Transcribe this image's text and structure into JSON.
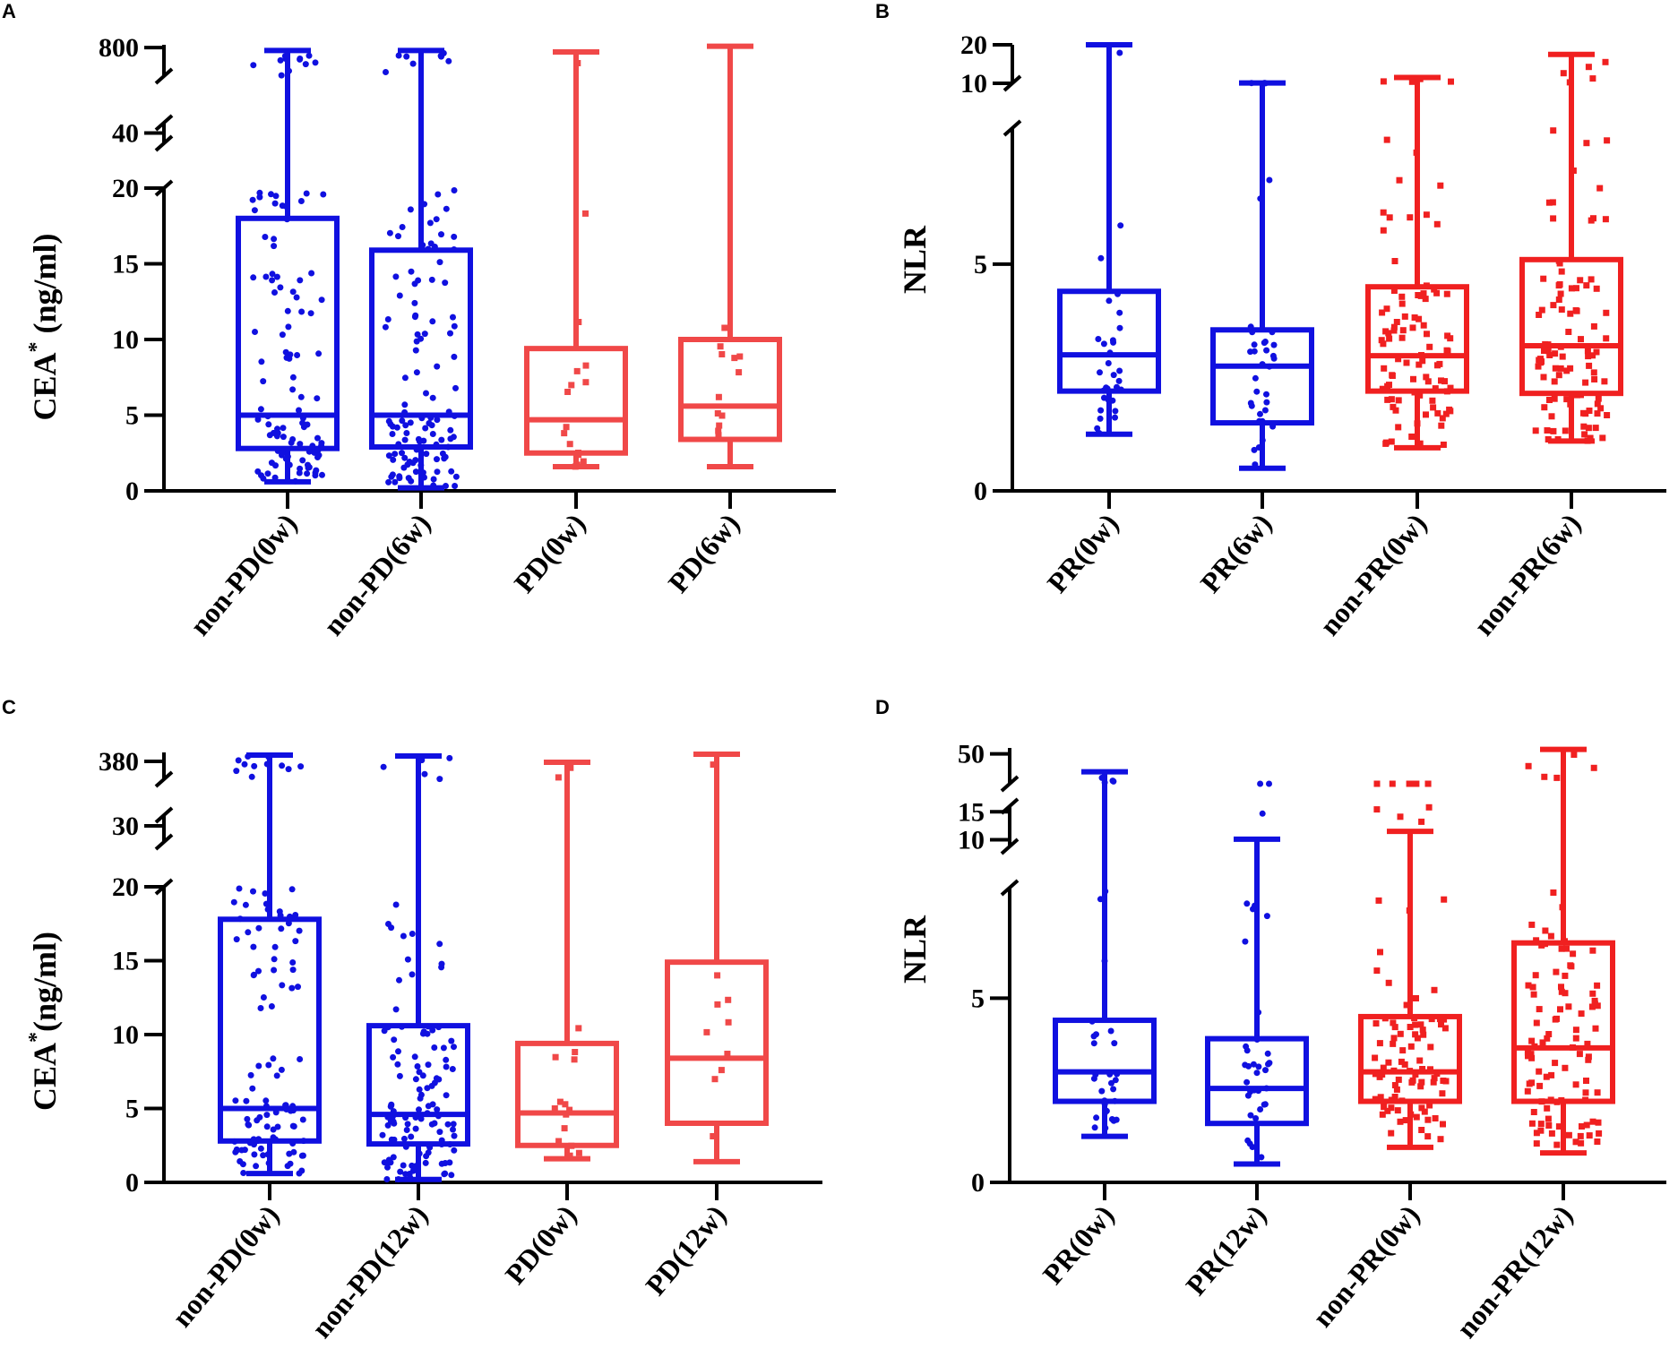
{
  "colors": {
    "blue": "#1010E0",
    "red": "#F04848",
    "red_dark": "#F02020"
  },
  "chart_data": [
    {
      "panel": "A",
      "type": "box",
      "ylabel_main": "CEA",
      "ylabel_sup": "*",
      "ylabel_units": " (ng/ml)",
      "y_axis_segments": [
        [
          0,
          20
        ],
        [
          30,
          50
        ],
        [
          700,
          810
        ]
      ],
      "yticks": [
        {
          "v": 0,
          "label": "0"
        },
        {
          "v": 5,
          "label": "5"
        },
        {
          "v": 10,
          "label": "10"
        },
        {
          "v": 15,
          "label": "15"
        },
        {
          "v": 20,
          "label": "20"
        },
        {
          "v": 40,
          "label": "40"
        },
        {
          "v": 800,
          "label": "800"
        }
      ],
      "categories": [
        "non-PD(0w)",
        "non-PD(6w)",
        "PD(0w)",
        "PD(6w)"
      ],
      "boxes": [
        {
          "color": "blue",
          "marker": "circle",
          "n": 110,
          "min": 0.6,
          "q1": 2.8,
          "median": 5.0,
          "q3": 18.0,
          "max": 790,
          "dense": true
        },
        {
          "color": "blue",
          "marker": "circle",
          "n": 120,
          "min": 0.2,
          "q1": 2.9,
          "median": 5.0,
          "q3": 15.9,
          "max": 790,
          "dense": true
        },
        {
          "color": "red",
          "marker": "square",
          "n": 16,
          "min": 1.6,
          "q1": 2.5,
          "median": 4.7,
          "q3": 9.4,
          "max": 785,
          "dense": false
        },
        {
          "color": "red",
          "marker": "square",
          "n": 12,
          "min": 1.6,
          "q1": 3.4,
          "median": 5.6,
          "q3": 10.0,
          "max": 805,
          "dense": false
        }
      ]
    },
    {
      "panel": "B",
      "type": "box",
      "ylabel_main": "NLR",
      "ylabel_sup": "",
      "ylabel_units": "",
      "y_axis_segments": [
        [
          0,
          8
        ],
        [
          10,
          20
        ]
      ],
      "yticks": [
        {
          "v": 0,
          "label": "0"
        },
        {
          "v": 5,
          "label": "5"
        },
        {
          "v": 10,
          "label": "10"
        },
        {
          "v": 20,
          "label": "20"
        }
      ],
      "categories": [
        "PR(0w)",
        "PR(6w)",
        "non-PR(0w)",
        "non-PR(6w)"
      ],
      "boxes": [
        {
          "color": "blue",
          "marker": "circle",
          "n": 32,
          "min": 1.25,
          "q1": 2.2,
          "median": 3.0,
          "q3": 4.4,
          "max": 20,
          "dense": false
        },
        {
          "color": "blue",
          "marker": "circle",
          "n": 34,
          "min": 0.5,
          "q1": 1.5,
          "median": 2.75,
          "q3": 3.55,
          "max": 10.1,
          "dense": false
        },
        {
          "color": "red_dark",
          "marker": "square",
          "n": 95,
          "min": 0.95,
          "q1": 2.2,
          "median": 2.98,
          "q3": 4.5,
          "max": 11.5,
          "dense": true
        },
        {
          "color": "red_dark",
          "marker": "square",
          "n": 100,
          "min": 1.1,
          "q1": 2.15,
          "median": 3.2,
          "q3": 5.1,
          "max": 17.5,
          "dense": true
        }
      ]
    },
    {
      "panel": "C",
      "type": "box",
      "ylabel_main": "CEA",
      "ylabel_sup": "*",
      "ylabel_units": "(ng/ml)",
      "y_axis_segments": [
        [
          0,
          20
        ],
        [
          24,
          34
        ],
        [
          370,
          385
        ]
      ],
      "yticks": [
        {
          "v": 0,
          "label": "0"
        },
        {
          "v": 5,
          "label": "5"
        },
        {
          "v": 10,
          "label": "10"
        },
        {
          "v": 15,
          "label": "15"
        },
        {
          "v": 20,
          "label": "20"
        },
        {
          "v": 30,
          "label": "30"
        },
        {
          "v": 380,
          "label": "380"
        }
      ],
      "categories": [
        "non-PD(0w)",
        "non-PD(12w)",
        "PD(0w)",
        "PD(12w)"
      ],
      "boxes": [
        {
          "color": "blue",
          "marker": "circle",
          "n": 110,
          "min": 0.6,
          "q1": 2.8,
          "median": 5.0,
          "q3": 17.8,
          "max": 383.5,
          "dense": true
        },
        {
          "color": "blue",
          "marker": "circle",
          "n": 120,
          "min": 0.2,
          "q1": 2.6,
          "median": 4.6,
          "q3": 10.6,
          "max": 383,
          "dense": true
        },
        {
          "color": "red",
          "marker": "square",
          "n": 16,
          "min": 1.6,
          "q1": 2.5,
          "median": 4.7,
          "q3": 9.4,
          "max": 379.5,
          "dense": false
        },
        {
          "color": "red",
          "marker": "square",
          "n": 10,
          "min": 1.4,
          "q1": 4.0,
          "median": 8.4,
          "q3": 14.9,
          "max": 384,
          "dense": false
        }
      ]
    },
    {
      "panel": "D",
      "type": "box",
      "ylabel_main": "NLR",
      "ylabel_sup": "",
      "ylabel_units": "",
      "y_axis_segments": [
        [
          0,
          8
        ],
        [
          8.8,
          16
        ],
        [
          40,
          52
        ]
      ],
      "yticks": [
        {
          "v": 0,
          "label": "0"
        },
        {
          "v": 5,
          "label": "5"
        },
        {
          "v": 10,
          "label": "10"
        },
        {
          "v": 15,
          "label": "15"
        },
        {
          "v": 50,
          "label": "50"
        }
      ],
      "categories": [
        "PR(0w)",
        "PR(12w)",
        "non-PR(0w)",
        "non-PR(12w)"
      ],
      "boxes": [
        {
          "color": "blue",
          "marker": "circle",
          "n": 32,
          "min": 1.25,
          "q1": 2.2,
          "median": 3.0,
          "q3": 4.4,
          "max": 44,
          "dense": false
        },
        {
          "color": "blue",
          "marker": "circle",
          "n": 36,
          "min": 0.5,
          "q1": 1.6,
          "median": 2.55,
          "q3": 3.9,
          "max": 10.1,
          "dense": false
        },
        {
          "color": "red_dark",
          "marker": "square",
          "n": 95,
          "min": 0.95,
          "q1": 2.2,
          "median": 3.0,
          "q3": 4.5,
          "max": 11.5,
          "dense": true
        },
        {
          "color": "red_dark",
          "marker": "square",
          "n": 100,
          "min": 0.8,
          "q1": 2.2,
          "median": 3.65,
          "q3": 6.5,
          "max": 51.5,
          "dense": true
        }
      ]
    }
  ]
}
